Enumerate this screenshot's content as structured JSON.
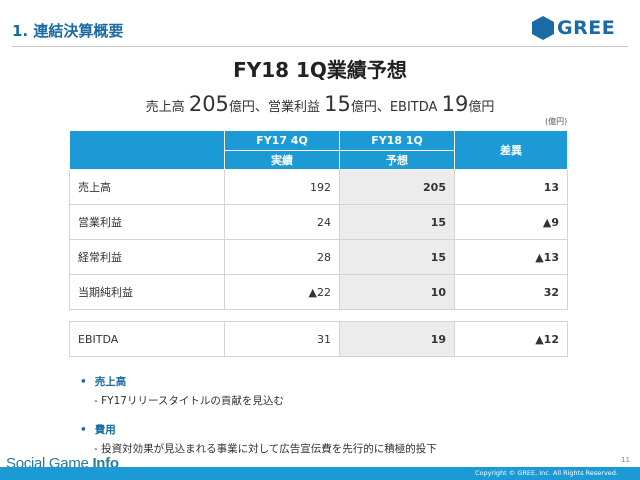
{
  "header": {
    "section_title": "1. 連結決算概要",
    "logo_text": "GREE",
    "brand_color": "#1a6aa3"
  },
  "title": "FY18 1Q業績予想",
  "summary": {
    "sales_label": "売上高",
    "sales_value": "205",
    "sales_unit": "億円、",
    "op_label": "営業利益",
    "op_value": "15",
    "op_unit": "億円、",
    "ebitda_label": "EBITDA",
    "ebitda_value": "19",
    "ebitda_unit": "億円"
  },
  "unit_note": "(億円)",
  "table": {
    "headers": {
      "col1_top": "FY17 4Q",
      "col1_bottom": "実績",
      "col2_top": "FY18 1Q",
      "col2_bottom": "予想",
      "col3": "差異"
    },
    "rows": [
      {
        "label": "売上高",
        "actual": "192",
        "forecast": "205",
        "diff": "13"
      },
      {
        "label": "営業利益",
        "actual": "24",
        "forecast": "15",
        "diff": "▲9"
      },
      {
        "label": "経常利益",
        "actual": "28",
        "forecast": "15",
        "diff": "▲13"
      },
      {
        "label": "当期純利益",
        "actual": "▲22",
        "forecast": "10",
        "diff": "32"
      }
    ],
    "ebitda_row": {
      "label": "EBITDA",
      "actual": "31",
      "forecast": "19",
      "diff": "▲12"
    }
  },
  "notes": [
    {
      "bullet": "•",
      "title": "売上高",
      "detail": "- FY17リリースタイトルの貢献を見込む"
    },
    {
      "bullet": "•",
      "title": "費用",
      "detail": "- 投資対効果が見込まれる事業に対して広告宣伝費を先行的に積極的投下"
    }
  ],
  "page_number": "11",
  "watermark": {
    "part1": "Social Game ",
    "part2": "Info"
  },
  "copyright": "Copyright © GREE, Inc. All Rights Reserved."
}
